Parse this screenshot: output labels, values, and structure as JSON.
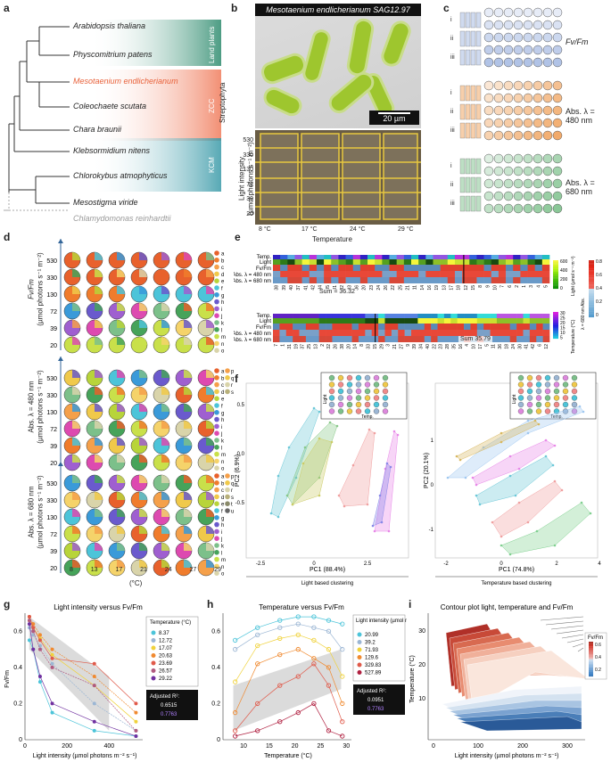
{
  "panel_labels": [
    "a",
    "b",
    "c",
    "d",
    "e",
    "f",
    "g",
    "h",
    "i"
  ],
  "panel_a": {
    "taxa": [
      "Arabidopsis thaliana",
      "Physcomitrium patens",
      "Mesotaenium endlicherianum",
      "Coleochaete scutata",
      "Chara braunii",
      "Klebsormidium nitens",
      "Chlorokybus atmophyticus",
      "Mesostigma viride",
      "Chlamydomonas reinhardtii"
    ],
    "group_labels": [
      "Land plants",
      "ZCC",
      "KCM"
    ],
    "clade_label": "Streptophyta",
    "colors": {
      "land": "#2e8b6e",
      "zcc": "#f07c5c",
      "kcm": "#3a9aa8",
      "highlight": "#e8613a",
      "outgroup": "#999999"
    }
  },
  "panel_b": {
    "strain": "Mesotaenium endlicherianum SAG12.97",
    "scale_bar": "20 µm",
    "y_title": "Light intensity",
    "y_unit": "(µmol photons s⁻¹ m⁻²)",
    "light_levels": [
      "530",
      "330",
      "130",
      "72",
      "39",
      "20"
    ],
    "temperatures": [
      "8 °C",
      "17 °C",
      "24 °C",
      "29 °C"
    ],
    "x_title": "Temperature"
  },
  "panel_c": {
    "rows": [
      "i",
      "ii",
      "iii"
    ],
    "labels": [
      "Fv/Fm",
      "Abs. λ = 480 nm",
      "Abs. λ = 680 nm"
    ],
    "colors": [
      "#9fb5e0",
      "#f0a058",
      "#7cc08a"
    ]
  },
  "panel_d": {
    "y_labels": [
      "530",
      "330",
      "130",
      "72",
      "39",
      "20"
    ],
    "x_labels": [
      "8",
      "13",
      "17",
      "21",
      "24",
      "27",
      "29"
    ],
    "x_title": "(°C)",
    "blocks": [
      "Fv/Fm",
      "Abs. λ = 480 nm",
      "Abs. λ = 680 nm"
    ],
    "y_unit": "(µmol photons s⁻¹ m⁻²)",
    "legend_letters": [
      "a",
      "b",
      "c",
      "d",
      "e",
      "f",
      "g",
      "h",
      "i",
      "j",
      "k",
      "l",
      "m",
      "n",
      "o"
    ],
    "legend_extra_480": [
      "p",
      "q",
      "r",
      "s"
    ],
    "legend_extra_680": [
      "p",
      "q",
      "r",
      "s",
      "t",
      "u"
    ]
  },
  "panel_e": {
    "row_labels": [
      "Temp.",
      "Light",
      "Fv/Fm",
      "Abs. λ = 480 nm",
      "Abs. λ = 680 nm"
    ],
    "sum_top": "Sum = 36.32",
    "sum_bottom": "Sum 35.79",
    "order_top": [
      "38",
      "39",
      "40",
      "37",
      "41",
      "42",
      "34",
      "35",
      "31",
      "32",
      "33",
      "36",
      "20",
      "23",
      "24",
      "26",
      "22",
      "25",
      "21",
      "11",
      "14",
      "16",
      "19",
      "13",
      "17",
      "18",
      "12",
      "15",
      "8",
      "9",
      "10",
      "7",
      "6",
      "2",
      "1",
      "3",
      "4",
      "5"
    ],
    "order_bottom": [
      "7",
      "1",
      "31",
      "19",
      "37",
      "25",
      "13",
      "2",
      "32",
      "26",
      "38",
      "20",
      "14",
      "8",
      "33",
      "15",
      "29",
      "3",
      "21",
      "27",
      "9",
      "39",
      "34",
      "40",
      "22",
      "23",
      "28",
      "35",
      "16",
      "4",
      "10",
      "17",
      "5",
      "11",
      "36",
      "18",
      "24",
      "30",
      "41",
      "42",
      "6",
      "12"
    ],
    "scale_light": {
      "title": "Light (µmol s⁻¹ m⁻²)",
      "ticks": [
        "600",
        "400",
        "200",
        "0"
      ]
    },
    "scale_abs": {
      "title": "λ = 680 nm Abs.",
      "ticks": [
        "0.8",
        "0.6",
        "0.4",
        "0.2",
        "0"
      ]
    },
    "scale_temp": {
      "title": "Temperature (°C)",
      "ticks": [
        "30",
        "25",
        "20",
        "15",
        "10",
        "5"
      ]
    }
  },
  "panel_f": {
    "left": {
      "xlabel": "PC1 (88.4%)",
      "ylabel": "PC2 (6.9%)",
      "caption": "Light based clustering",
      "xticks": [
        "-2.5",
        "0",
        "2.5"
      ],
      "yticks": [
        "0.5",
        "0.0",
        "-0.5"
      ],
      "inset_x": "Temp.",
      "inset_y": "Light"
    },
    "right": {
      "xlabel": "PC1 (74.8%)",
      "ylabel": "PC2 (20.1%)",
      "caption": "Temperature based clustering",
      "xticks": [
        "-2",
        "0",
        "2",
        "4"
      ],
      "yticks": [
        "1",
        "0",
        "-1"
      ],
      "inset_x": "Temp.",
      "inset_y": "Light"
    }
  },
  "panel_g": {
    "title": "Light intensity versus Fv/Fm",
    "xlabel": "Light intensity (µmol photons m⁻² s⁻¹)",
    "ylabel": "Fv/Fm",
    "legend_title": "Temperature (°C)",
    "legend_items": [
      "8.37",
      "12.72",
      "17.07",
      "20.63",
      "23.69",
      "26.57",
      "29.22"
    ],
    "legend_colors": [
      "#4cc4d9",
      "#9bb6d4",
      "#f0d23c",
      "#f08a30",
      "#e05a4a",
      "#b05a80",
      "#7030a0"
    ],
    "r2_label": "Adjusted R²:",
    "r2_values": [
      "0.6515",
      "0.7763"
    ],
    "xticks": [
      "0",
      "200",
      "400"
    ],
    "yticks": [
      "0.6",
      "0.4",
      "0.2",
      "0"
    ]
  },
  "panel_h": {
    "title": "Temperature versus Fv/Fm",
    "xlabel": "Temperature (°C)",
    "legend_title": "Light intensity (µmol m⁻² s⁻¹)",
    "legend_items": [
      "20.99",
      "39.2",
      "71.93",
      "129.6",
      "329.83",
      "527.89"
    ],
    "legend_colors": [
      "#4cc4d9",
      "#9bb6d4",
      "#f0d23c",
      "#f08a30",
      "#e05a4a",
      "#b02040"
    ],
    "r2_label": "Adjusted R²:",
    "r2_values": [
      "0.0951",
      "0.7763"
    ],
    "xticks": [
      "10",
      "15",
      "20",
      "25",
      "30"
    ],
    "yticks": [
      "0.6",
      "0.4",
      "0.2",
      "0"
    ]
  },
  "panel_i": {
    "title": "Contour plot light, temperature and Fv/Fm",
    "xlabel": "Light intensity (µmol photons m⁻² s⁻¹)",
    "ylabel": "Temperature (°C)",
    "legend_title": "Fv/Fm",
    "legend_ticks": [
      "0.6",
      "0.4",
      "0.2"
    ],
    "xticks": [
      "0",
      "100",
      "200",
      "300"
    ],
    "yticks": [
      "30",
      "20",
      "10"
    ]
  },
  "chart_data": [
    {
      "type": "line",
      "title": "Light intensity versus Fv/Fm",
      "x": [
        20.99,
        39.2,
        71.93,
        129.6,
        329.83,
        527.89
      ],
      "series": [
        {
          "name": "8.37",
          "values": [
            0.55,
            0.5,
            0.32,
            0.15,
            0.05,
            0.02
          ]
        },
        {
          "name": "12.72",
          "values": [
            0.62,
            0.58,
            0.52,
            0.42,
            0.2,
            0.05
          ]
        },
        {
          "name": "17.07",
          "values": [
            0.66,
            0.62,
            0.56,
            0.47,
            0.3,
            0.1
          ]
        },
        {
          "name": "20.63",
          "values": [
            0.68,
            0.64,
            0.58,
            0.5,
            0.35,
            0.15
          ]
        },
        {
          "name": "23.69",
          "values": [
            0.68,
            0.62,
            0.55,
            0.45,
            0.42,
            0.2
          ]
        },
        {
          "name": "26.57",
          "values": [
            0.66,
            0.6,
            0.5,
            0.4,
            0.3,
            0.05
          ]
        },
        {
          "name": "29.22",
          "values": [
            0.64,
            0.5,
            0.35,
            0.2,
            0.1,
            0.02
          ]
        }
      ],
      "ylim": [
        0,
        0.7
      ]
    },
    {
      "type": "line",
      "title": "Temperature versus Fv/Fm",
      "x": [
        8.37,
        12.72,
        17.07,
        20.63,
        23.69,
        26.57,
        29.22
      ],
      "series": [
        {
          "name": "20.99",
          "values": [
            0.55,
            0.62,
            0.66,
            0.68,
            0.68,
            0.66,
            0.64
          ]
        },
        {
          "name": "39.2",
          "values": [
            0.5,
            0.58,
            0.62,
            0.64,
            0.62,
            0.6,
            0.5
          ]
        },
        {
          "name": "71.93",
          "values": [
            0.32,
            0.52,
            0.56,
            0.58,
            0.55,
            0.5,
            0.35
          ]
        },
        {
          "name": "129.6",
          "values": [
            0.15,
            0.42,
            0.47,
            0.5,
            0.45,
            0.4,
            0.2
          ]
        },
        {
          "name": "329.83",
          "values": [
            0.05,
            0.2,
            0.3,
            0.35,
            0.42,
            0.3,
            0.1
          ]
        },
        {
          "name": "527.89",
          "values": [
            0.02,
            0.05,
            0.1,
            0.15,
            0.2,
            0.05,
            0.02
          ]
        }
      ],
      "ylim": [
        0,
        0.7
      ]
    }
  ]
}
